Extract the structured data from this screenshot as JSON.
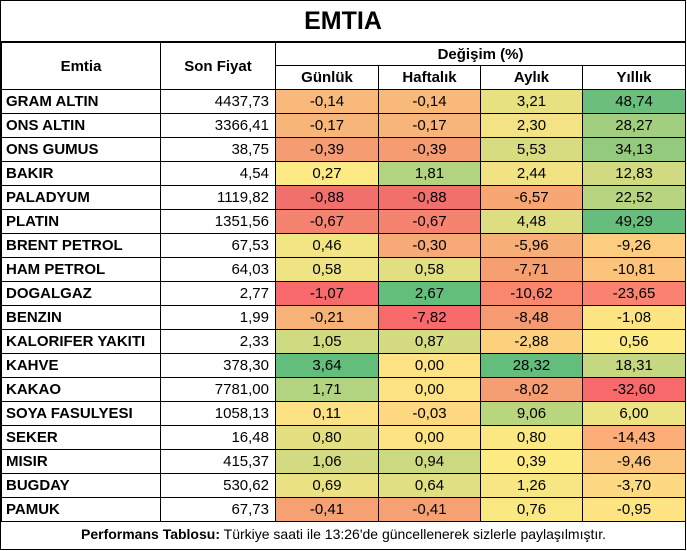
{
  "title": "EMTIA",
  "headers": {
    "commodity": "Emtia",
    "last_price": "Son Fiyat",
    "change_group": "Değişim (%)",
    "daily": "Günlük",
    "weekly": "Haftalık",
    "monthly": "Aylık",
    "yearly": "Yıllık"
  },
  "rows": [
    {
      "name": "GRAM ALTIN",
      "price": "4437,73",
      "d": "-0,14",
      "w": "-0,14",
      "m": "3,21",
      "y": "48,74",
      "colors": [
        "#F8B97A",
        "#F8B97A",
        "#E8E182",
        "#6BBE7B"
      ]
    },
    {
      "name": "ONS ALTIN",
      "price": "3366,41",
      "d": "-0,17",
      "w": "-0,17",
      "m": "2,30",
      "y": "28,27",
      "colors": [
        "#F8B579",
        "#F8B579",
        "#F4E384",
        "#A2CE7F"
      ]
    },
    {
      "name": "ONS GUMUS",
      "price": "38,75",
      "d": "-0,39",
      "w": "-0,39",
      "m": "5,53",
      "y": "34,13",
      "colors": [
        "#F69C73",
        "#F69C73",
        "#D8DC81",
        "#93CA7E"
      ]
    },
    {
      "name": "BAKIR",
      "price": "4,54",
      "d": "0,27",
      "w": "1,81",
      "m": "2,44",
      "y": "12,83",
      "colors": [
        "#FDEA84",
        "#B2D480",
        "#F1E384",
        "#D1DA81"
      ]
    },
    {
      "name": "PALADYUM",
      "price": "1119,82",
      "d": "-0,88",
      "w": "-0,88",
      "m": "-6,57",
      "y": "22,52",
      "colors": [
        "#F2706B",
        "#F2706B",
        "#F8A774",
        "#B7D580"
      ]
    },
    {
      "name": "PLATIN",
      "price": "1351,56",
      "d": "-0,67",
      "w": "-0,67",
      "m": "4,48",
      "y": "49,29",
      "colors": [
        "#F4846F",
        "#F4846F",
        "#DDDE82",
        "#67BD7B"
      ]
    },
    {
      "name": "BRENT PETROL",
      "price": "67,53",
      "d": "0,46",
      "w": "-0,30",
      "m": "-5,96",
      "y": "-9,26",
      "colors": [
        "#F4E584",
        "#F7A977",
        "#F8AF77",
        "#FDCD7F"
      ]
    },
    {
      "name": "HAM PETROL",
      "price": "64,03",
      "d": "0,58",
      "w": "0,58",
      "m": "-7,71",
      "y": "-10,81",
      "colors": [
        "#EFE483",
        "#E2DF82",
        "#F6A072",
        "#FCC37C"
      ]
    },
    {
      "name": "DOGALGAZ",
      "price": "2,77",
      "d": "-1,07",
      "w": "2,67",
      "m": "-10,62",
      "y": "-23,65",
      "colors": [
        "#F8696B",
        "#63BE7B",
        "#F8876E",
        "#F98370"
      ]
    },
    {
      "name": "BENZIN",
      "price": "1,99",
      "d": "-0,21",
      "w": "-7,82",
      "m": "-8,48",
      "y": "-1,08",
      "colors": [
        "#F7B278",
        "#F8696B",
        "#F69A71",
        "#FEE583"
      ]
    },
    {
      "name": "KALORIFER YAKITI",
      "price": "2,33",
      "d": "1,05",
      "w": "0,87",
      "m": "-2,88",
      "y": "0,56",
      "colors": [
        "#CFDB81",
        "#D5DB81",
        "#FBD17E",
        "#FCEA84"
      ]
    },
    {
      "name": "KAHVE",
      "price": "378,30",
      "d": "3,64",
      "w": "0,00",
      "m": "28,32",
      "y": "18,31",
      "colors": [
        "#63BE7B",
        "#FDE384",
        "#63BE7B",
        "#C4D881"
      ]
    },
    {
      "name": "KAKAO",
      "price": "7781,00",
      "d": "1,71",
      "w": "0,00",
      "m": "-8,02",
      "y": "-32,60",
      "colors": [
        "#B2D480",
        "#FDE384",
        "#F69E73",
        "#F8696B"
      ]
    },
    {
      "name": "SOYA FASULYESI",
      "price": "1058,13",
      "d": "0,11",
      "w": "-0,03",
      "m": "9,06",
      "y": "6,00",
      "colors": [
        "#FDE283",
        "#FDD880",
        "#B9D67F",
        "#ECE483"
      ]
    },
    {
      "name": "SEKER",
      "price": "16,48",
      "d": "0,80",
      "w": "0,00",
      "m": "0,80",
      "y": "-14,43",
      "colors": [
        "#E4E082",
        "#FDE384",
        "#FCE883",
        "#FBAE78"
      ]
    },
    {
      "name": "MISIR",
      "price": "415,37",
      "d": "1,06",
      "w": "0,94",
      "m": "0,39",
      "y": "-9,46",
      "colors": [
        "#D4DA81",
        "#CCD981",
        "#FDEB84",
        "#FCC57D"
      ]
    },
    {
      "name": "BUGDAY",
      "price": "530,62",
      "d": "0,69",
      "w": "0,64",
      "m": "1,26",
      "y": "-3,70",
      "colors": [
        "#EAE283",
        "#E0DF82",
        "#F7E784",
        "#FDDA81"
      ]
    },
    {
      "name": "PAMUK",
      "price": "67,73",
      "d": "-0,41",
      "w": "-0,41",
      "m": "0,76",
      "y": "-0,95",
      "colors": [
        "#F6A174",
        "#F6A174",
        "#FAE883",
        "#FEE483"
      ]
    }
  ],
  "footer": {
    "label": "Performans Tablosu:",
    "text": " Türkiye saati ile 13:26'de güncellenerek sizlerle paylaşılmıştır."
  }
}
